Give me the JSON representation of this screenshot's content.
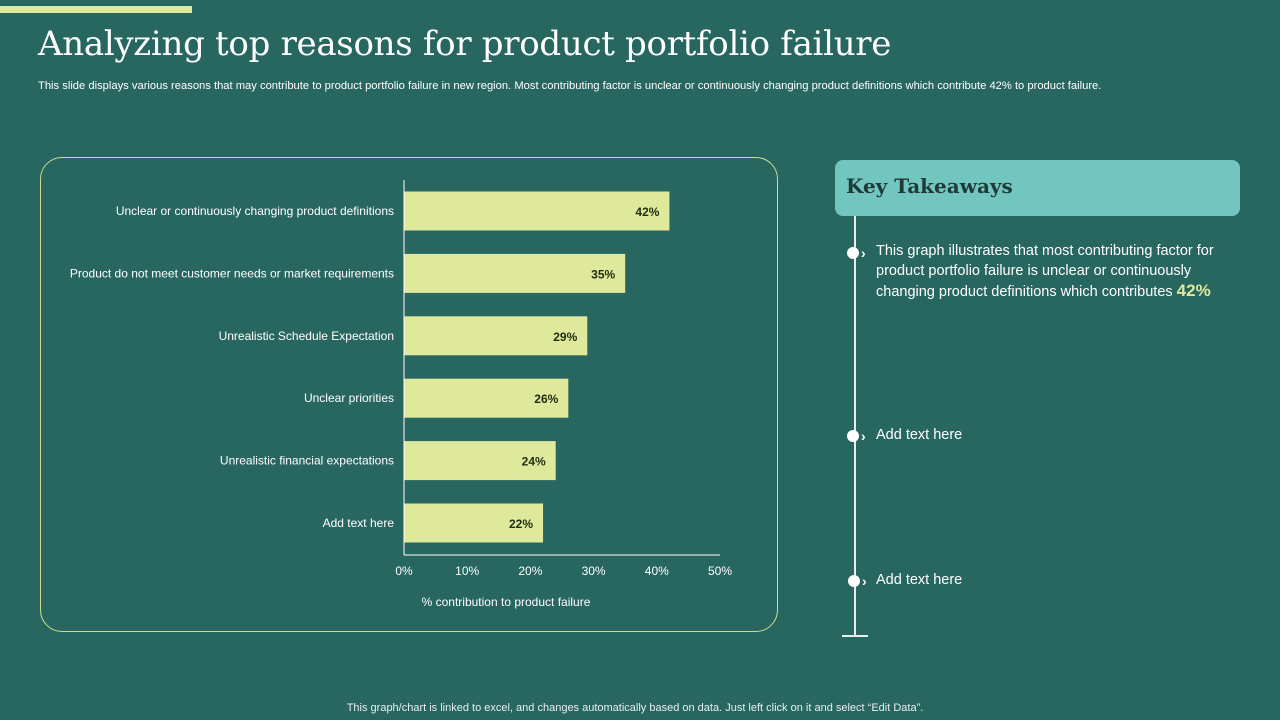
{
  "slide": {
    "title": "Analyzing top reasons for product portfolio failure",
    "subtitle": "This slide displays various reasons that may contribute to product portfolio failure in new region. Most contributing factor is unclear or continuously changing product definitions which contribute 42% to product failure.",
    "footer": "This graph/chart is linked to excel, and changes automatically based on data. Just left click on it and select “Edit Data”."
  },
  "takeaways": {
    "title": "Key Takeaways",
    "items": [
      {
        "text": "This graph illustrates that most contributing factor for product portfolio failure is unclear or continuously changing product definitions which contributes",
        "highlight": "42%"
      },
      {
        "text": "Add text here",
        "highlight": ""
      },
      {
        "text": "Add text here",
        "highlight": ""
      }
    ]
  },
  "colors": {
    "background": "#286660",
    "bar": "#dfe99c",
    "accent": "#dfe99c",
    "header_box": "#72c6bf"
  },
  "chart_data": {
    "type": "bar",
    "orientation": "horizontal",
    "categories": [
      "Unclear or continuously changing product definitions",
      "Product do not meet customer needs or market requirements",
      "Unrealistic Schedule Expectation",
      "Unclear priorities",
      "Unrealistic financial expectations",
      "Add text here"
    ],
    "values": [
      42,
      35,
      29,
      26,
      24,
      22
    ],
    "data_labels": [
      "42%",
      "35%",
      "29%",
      "26%",
      "24%",
      "22%"
    ],
    "xlabel": "% contribution to product failure",
    "ylabel": "",
    "xlim": [
      0,
      50
    ],
    "xticks": [
      "0%",
      "10%",
      "20%",
      "30%",
      "40%",
      "50%"
    ],
    "grid": false,
    "legend": "none"
  }
}
